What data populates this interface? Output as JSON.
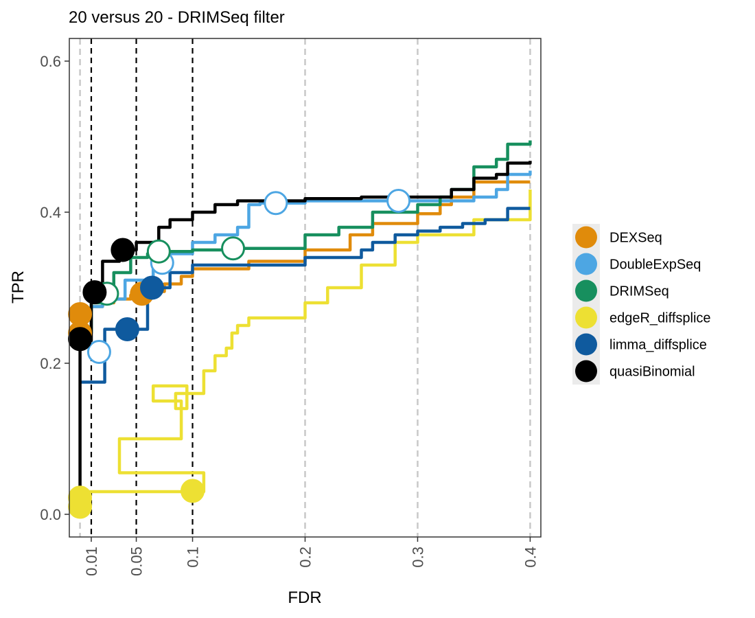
{
  "chart_data": {
    "type": "line",
    "title": "20 versus 20 - DRIMSeq filter",
    "xlabel": "FDR",
    "ylabel": "TPR",
    "xlim": [
      -0.0095,
      0.4095
    ],
    "ylim": [
      -0.03,
      0.63
    ],
    "x_ticks": [
      0.01,
      0.05,
      0.1,
      0.2,
      0.3,
      0.4
    ],
    "x_tick_labels": [
      "0.01",
      "0.05",
      "0.1",
      "0.2",
      "0.3",
      "0.4"
    ],
    "y_ticks": [
      0.0,
      0.2,
      0.4,
      0.6
    ],
    "y_tick_labels": [
      "0.0",
      "0.2",
      "0.4",
      "0.6"
    ],
    "reference_lines_black": [
      0.01,
      0.05,
      0.1
    ],
    "reference_lines_gray": [
      0.0,
      0.2,
      0.3,
      0.4
    ],
    "legend_position": "right",
    "grid": false,
    "series": [
      {
        "name": "DEXSeq",
        "color": "#E08B0B",
        "x": [
          0.0,
          0.0,
          0.005,
          0.01,
          0.02,
          0.03,
          0.045,
          0.06,
          0.075,
          0.09,
          0.1,
          0.15,
          0.2,
          0.24,
          0.26,
          0.3,
          0.32,
          0.33,
          0.35,
          0.38,
          0.4
        ],
        "y": [
          0.24,
          0.265,
          0.272,
          0.275,
          0.28,
          0.285,
          0.29,
          0.295,
          0.305,
          0.315,
          0.325,
          0.335,
          0.35,
          0.37,
          0.385,
          0.398,
          0.41,
          0.42,
          0.44,
          0.44,
          0.44
        ],
        "points": [
          {
            "x": 0.0,
            "y": 0.265,
            "filled": true
          },
          {
            "x": 0.0,
            "y": 0.24,
            "filled": true
          },
          {
            "x": 0.055,
            "y": 0.292,
            "filled": true
          }
        ]
      },
      {
        "name": "DoubleExpSeq",
        "color": "#4DA6E3",
        "x": [
          0.0,
          0.01,
          0.02,
          0.04,
          0.065,
          0.075,
          0.1,
          0.12,
          0.14,
          0.15,
          0.16,
          0.2,
          0.25,
          0.3,
          0.35,
          0.37,
          0.38,
          0.4
        ],
        "y": [
          0.24,
          0.275,
          0.285,
          0.31,
          0.33,
          0.345,
          0.36,
          0.37,
          0.38,
          0.41,
          0.412,
          0.415,
          0.415,
          0.415,
          0.42,
          0.43,
          0.45,
          0.455
        ],
        "points": [
          {
            "x": 0.017,
            "y": 0.215,
            "filled": false
          },
          {
            "x": 0.073,
            "y": 0.333,
            "filled": false
          },
          {
            "x": 0.174,
            "y": 0.412,
            "filled": false
          },
          {
            "x": 0.283,
            "y": 0.415,
            "filled": false
          }
        ]
      },
      {
        "name": "DRIMSeq",
        "color": "#178F5E",
        "x": [
          0.0,
          0.01,
          0.02,
          0.03,
          0.045,
          0.06,
          0.07,
          0.1,
          0.14,
          0.2,
          0.23,
          0.26,
          0.3,
          0.32,
          0.33,
          0.35,
          0.37,
          0.38,
          0.4
        ],
        "y": [
          0.24,
          0.28,
          0.29,
          0.32,
          0.34,
          0.345,
          0.348,
          0.35,
          0.352,
          0.37,
          0.38,
          0.4,
          0.41,
          0.42,
          0.43,
          0.46,
          0.47,
          0.49,
          0.495
        ],
        "points": [
          {
            "x": 0.024,
            "y": 0.292,
            "filled": false
          },
          {
            "x": 0.07,
            "y": 0.348,
            "filled": false
          },
          {
            "x": 0.136,
            "y": 0.352,
            "filled": false
          }
        ]
      },
      {
        "name": "edgeR_diffsplice",
        "color": "#EDE033",
        "x": [
          0.0,
          0.0,
          0.1,
          0.11,
          0.035,
          0.09,
          0.065,
          0.095,
          0.085,
          0.11,
          0.12,
          0.13,
          0.135,
          0.14,
          0.15,
          0.16,
          0.2,
          0.22,
          0.25,
          0.28,
          0.3,
          0.35,
          0.4
        ],
        "y": [
          0.01,
          0.03,
          0.03,
          0.055,
          0.1,
          0.15,
          0.17,
          0.14,
          0.16,
          0.19,
          0.21,
          0.22,
          0.24,
          0.25,
          0.26,
          0.26,
          0.28,
          0.3,
          0.33,
          0.36,
          0.37,
          0.39,
          0.43
        ],
        "points": [
          {
            "x": 0.0,
            "y": 0.01,
            "filled": true
          },
          {
            "x": 0.0,
            "y": 0.022,
            "filled": true
          },
          {
            "x": 0.1,
            "y": 0.031,
            "filled": true
          }
        ]
      },
      {
        "name": "limma_diffsplice",
        "color": "#0F5A9E",
        "x": [
          0.0,
          0.005,
          0.01,
          0.02,
          0.022,
          0.04,
          0.06,
          0.08,
          0.1,
          0.2,
          0.24,
          0.25,
          0.26,
          0.28,
          0.3,
          0.32,
          0.34,
          0.36,
          0.38,
          0.4
        ],
        "y": [
          0.175,
          0.175,
          0.175,
          0.175,
          0.245,
          0.245,
          0.3,
          0.32,
          0.33,
          0.34,
          0.34,
          0.35,
          0.36,
          0.37,
          0.375,
          0.38,
          0.385,
          0.39,
          0.405,
          0.405
        ],
        "points": [
          {
            "x": 0.042,
            "y": 0.245,
            "filled": true
          },
          {
            "x": 0.064,
            "y": 0.3,
            "filled": true
          }
        ]
      },
      {
        "name": "quasiBinomial",
        "color": "#000000",
        "x": [
          0.0,
          0.0,
          0.01,
          0.02,
          0.035,
          0.05,
          0.07,
          0.08,
          0.1,
          0.12,
          0.14,
          0.2,
          0.25,
          0.3,
          0.33,
          0.35,
          0.37,
          0.38,
          0.4
        ],
        "y": [
          0.03,
          0.23,
          0.295,
          0.335,
          0.35,
          0.36,
          0.38,
          0.39,
          0.4,
          0.41,
          0.415,
          0.418,
          0.42,
          0.42,
          0.43,
          0.445,
          0.45,
          0.465,
          0.468
        ],
        "points": [
          {
            "x": 0.0,
            "y": 0.232,
            "filled": true
          },
          {
            "x": 0.013,
            "y": 0.294,
            "filled": true
          },
          {
            "x": 0.038,
            "y": 0.35,
            "filled": true
          }
        ]
      }
    ]
  }
}
